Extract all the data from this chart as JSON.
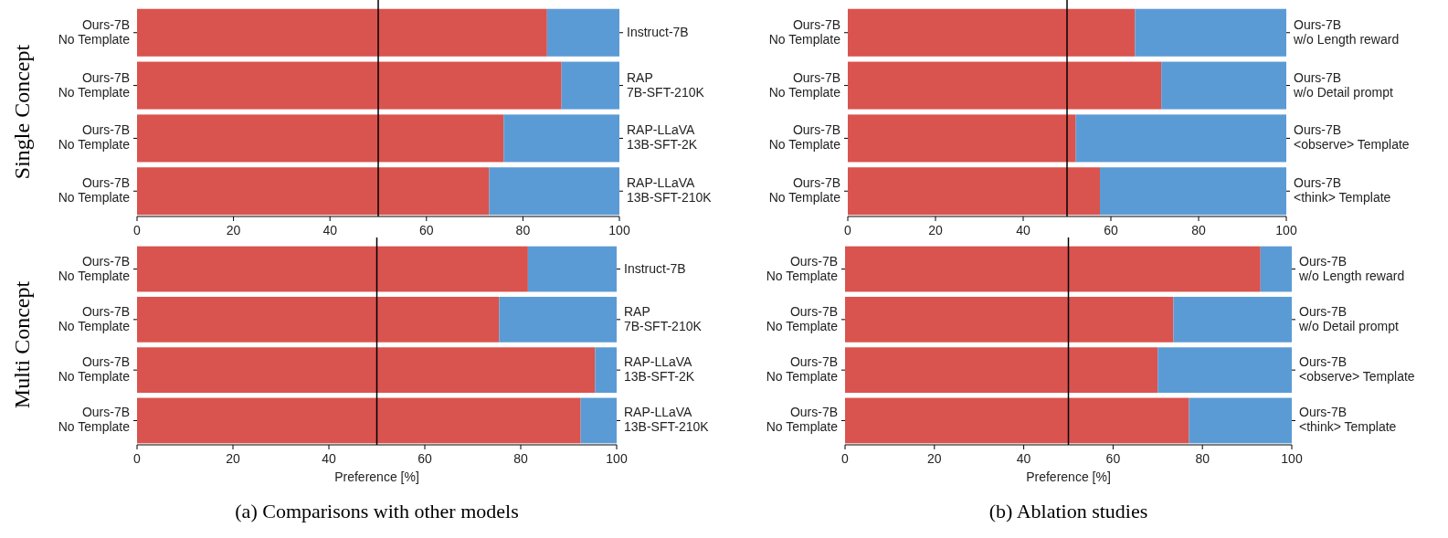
{
  "chart_data": [
    {
      "type": "bar",
      "orientation": "horizontal",
      "stacked": true,
      "ylabel": "Single Concept",
      "categories": [
        "Ours-7B\nNo Template",
        "Ours-7B\nNo Template",
        "Ours-7B\nNo Template",
        "Ours-7B\nNo Template"
      ],
      "y2_categories": [
        "Instruct-7B",
        "RAP\n7B-SFT-210K",
        "RAP-LLaVA\n13B-SFT-2K",
        "RAP-LLaVA\n13B-SFT-210K"
      ],
      "series": [
        {
          "color": "#d9534f",
          "values": [
            85,
            88,
            76,
            73
          ]
        },
        {
          "color": "#5b9bd5",
          "values": [
            15,
            12,
            24,
            27
          ]
        }
      ],
      "xlim": [
        0,
        100
      ],
      "xticks": [
        0,
        20,
        40,
        60,
        80,
        100
      ],
      "ref_lines": [
        {
          "axis": "x",
          "value": 50,
          "color": "#000000"
        }
      ]
    },
    {
      "type": "bar",
      "orientation": "horizontal",
      "stacked": true,
      "categories": [
        "Ours-7B\nNo Template",
        "Ours-7B\nNo Template",
        "Ours-7B\nNo Template",
        "Ours-7B\nNo Template"
      ],
      "y2_categories": [
        "Ours-7B\nw/o Length reward",
        "Ours-7B\nw/o Detail prompt",
        "Ours-7B\n<observe> Template",
        "Ours-7B\n<think> Template"
      ],
      "series": [
        {
          "color": "#d9534f",
          "values": [
            65.5,
            71.5,
            52,
            57.5
          ]
        },
        {
          "color": "#5b9bd5",
          "values": [
            34.5,
            28.5,
            48,
            42.5
          ]
        }
      ],
      "xlim": [
        0,
        100
      ],
      "xticks": [
        0,
        20,
        40,
        60,
        80,
        100
      ],
      "ref_lines": [
        {
          "axis": "x",
          "value": 50,
          "color": "#000000"
        }
      ]
    },
    {
      "type": "bar",
      "orientation": "horizontal",
      "stacked": true,
      "ylabel": "Multi Concept",
      "xlabel": "Preference [%]",
      "annotations": [
        "(a) Comparisons with other models"
      ],
      "categories": [
        "Ours-7B\nNo Template",
        "Ours-7B\nNo Template",
        "Ours-7B\nNo Template",
        "Ours-7B\nNo Template"
      ],
      "y2_categories": [
        "Instruct-7B",
        "RAP\n7B-SFT-210K",
        "RAP-LLaVA\n13B-SFT-2K",
        "RAP-LLaVA\n13B-SFT-210K"
      ],
      "series": [
        {
          "color": "#d9534f",
          "values": [
            81.5,
            75.5,
            95.5,
            92.5
          ]
        },
        {
          "color": "#5b9bd5",
          "values": [
            18.5,
            24.5,
            4.5,
            7.5
          ]
        }
      ],
      "xlim": [
        0,
        100
      ],
      "xticks": [
        0,
        20,
        40,
        60,
        80,
        100
      ],
      "ref_lines": [
        {
          "axis": "x",
          "value": 50,
          "color": "#000000"
        }
      ]
    },
    {
      "type": "bar",
      "orientation": "horizontal",
      "stacked": true,
      "xlabel": "Preference [%]",
      "annotations": [
        "(b) Ablation studies"
      ],
      "categories": [
        "Ours-7B\nNo Template",
        "Ours-7B\nNo Template",
        "Ours-7B\nNo Template",
        "Ours-7B\nNo Template"
      ],
      "y2_categories": [
        "Ours-7B\nw/o Length reward",
        "Ours-7B\nw/o Detail prompt",
        "Ours-7B\n<observe> Template",
        "Ours-7B\n<think> Template"
      ],
      "series": [
        {
          "color": "#d9534f",
          "values": [
            93,
            73.5,
            70,
            77
          ]
        },
        {
          "color": "#5b9bd5",
          "values": [
            7,
            26.5,
            30,
            23
          ]
        }
      ],
      "xlim": [
        0,
        100
      ],
      "xticks": [
        0,
        20,
        40,
        60,
        80,
        100
      ],
      "ref_lines": [
        {
          "axis": "x",
          "value": 50,
          "color": "#000000"
        }
      ]
    }
  ]
}
